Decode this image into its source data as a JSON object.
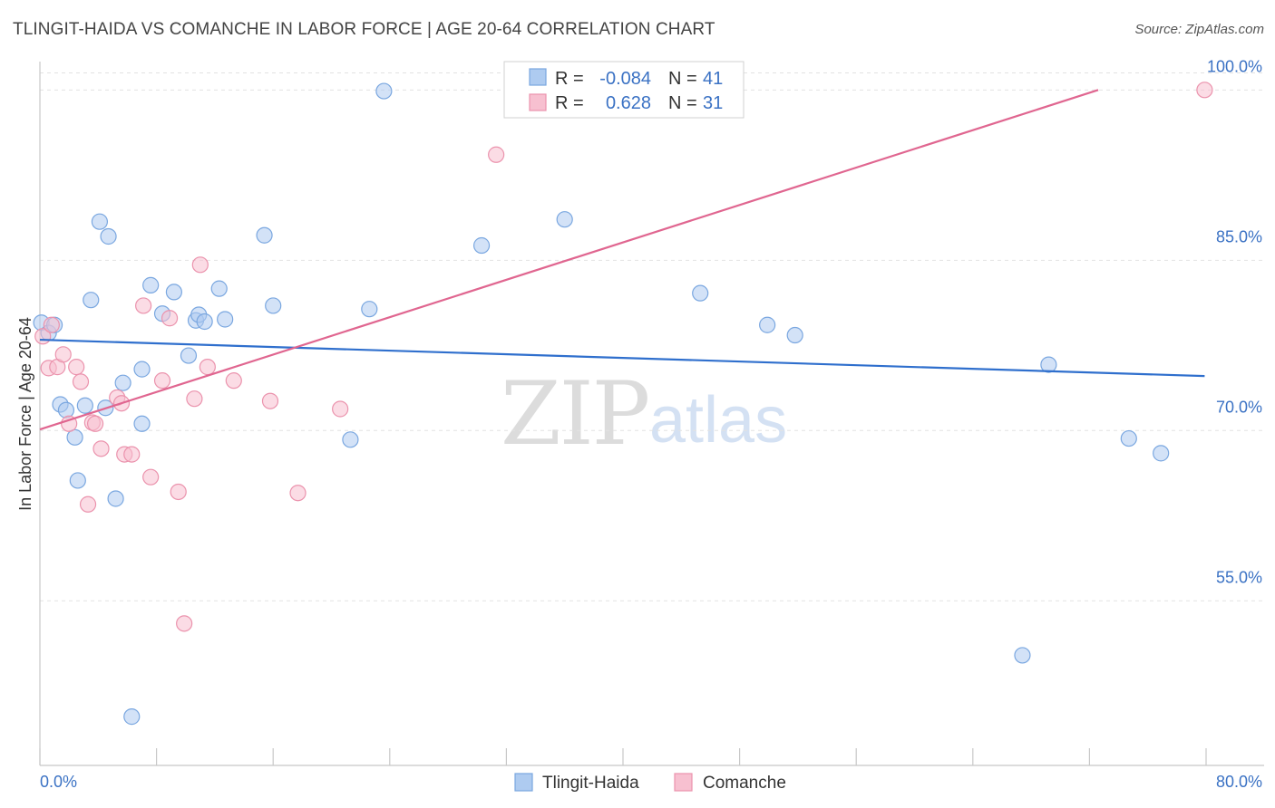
{
  "header": {
    "title": "TLINGIT-HAIDA VS COMANCHE IN LABOR FORCE | AGE 20-64 CORRELATION CHART",
    "source": "Source: ZipAtlas.com"
  },
  "watermark": {
    "zip": "ZIP",
    "atlas": "atlas"
  },
  "legend_box": {
    "rows": [
      {
        "r_label": "R =",
        "r_value": "-0.084",
        "n_label": "N =",
        "n_value": "41",
        "color": "#aecbf0",
        "stroke": "#7aa7e0"
      },
      {
        "r_label": "R =",
        "r_value": "0.628",
        "n_label": "N =",
        "n_value": "31",
        "color": "#f7c0d0",
        "stroke": "#eb93ad"
      }
    ]
  },
  "bottom_legend": [
    {
      "label": "Tlingit-Haida",
      "color": "#aecbf0",
      "stroke": "#7aa7e0"
    },
    {
      "label": "Comanche",
      "color": "#f7c0d0",
      "stroke": "#eb93ad"
    }
  ],
  "chart_data": {
    "type": "scatter",
    "title": "TLINGIT-HAIDA VS COMANCHE IN LABOR FORCE | AGE 20-64 CORRELATION CHART",
    "xlabel": "",
    "ylabel": "In Labor Force | Age 20-64",
    "xlim": [
      0,
      80
    ],
    "ylim": [
      40.5,
      102.5
    ],
    "x_tick_labels": [
      "0.0%",
      "80.0%"
    ],
    "y_ticks": [
      55,
      70,
      85,
      100
    ],
    "y_tick_labels": [
      "55.0%",
      "70.0%",
      "85.0%",
      "100.0%"
    ],
    "grid": true,
    "legend_position": "top-center",
    "series": [
      {
        "name": "Tlingit-Haida",
        "color": "#aecbf0",
        "stroke": "#7aa7e0",
        "line_color": "#2f6fcd",
        "trend": [
          [
            0,
            78.0
          ],
          [
            79.9,
            74.8
          ]
        ],
        "points": [
          [
            0.1,
            79.5
          ],
          [
            0.6,
            78.6
          ],
          [
            1.0,
            79.3
          ],
          [
            1.4,
            72.3
          ],
          [
            1.8,
            71.8
          ],
          [
            2.4,
            69.4
          ],
          [
            2.6,
            65.6
          ],
          [
            3.1,
            72.2
          ],
          [
            3.5,
            81.5
          ],
          [
            4.1,
            88.4
          ],
          [
            4.5,
            72.0
          ],
          [
            4.7,
            87.1
          ],
          [
            5.2,
            64.0
          ],
          [
            5.7,
            74.2
          ],
          [
            6.3,
            44.8
          ],
          [
            7.0,
            75.4
          ],
          [
            7.0,
            70.6
          ],
          [
            7.6,
            82.8
          ],
          [
            8.4,
            80.3
          ],
          [
            9.2,
            82.2
          ],
          [
            10.2,
            76.6
          ],
          [
            10.7,
            79.7
          ],
          [
            10.9,
            80.2
          ],
          [
            11.3,
            79.6
          ],
          [
            12.3,
            82.5
          ],
          [
            12.7,
            79.8
          ],
          [
            15.4,
            87.2
          ],
          [
            16.0,
            81.0
          ],
          [
            21.3,
            69.2
          ],
          [
            22.6,
            80.7
          ],
          [
            23.6,
            99.9
          ],
          [
            30.3,
            86.3
          ],
          [
            36.0,
            88.6
          ],
          [
            36.8,
            99.9
          ],
          [
            45.3,
            82.1
          ],
          [
            49.9,
            79.3
          ],
          [
            51.8,
            78.4
          ],
          [
            67.4,
            50.2
          ],
          [
            69.2,
            75.8
          ],
          [
            74.7,
            69.3
          ],
          [
            76.9,
            68.0
          ]
        ]
      },
      {
        "name": "Comanche",
        "color": "#f7c0d0",
        "stroke": "#eb93ad",
        "line_color": "#e06690",
        "trend": [
          [
            0,
            70.1
          ],
          [
            72.6,
            100.0
          ]
        ],
        "points": [
          [
            0.2,
            78.3
          ],
          [
            0.6,
            75.5
          ],
          [
            0.8,
            79.3
          ],
          [
            1.2,
            75.6
          ],
          [
            1.6,
            76.7
          ],
          [
            2.0,
            70.6
          ],
          [
            2.5,
            75.6
          ],
          [
            2.8,
            74.3
          ],
          [
            3.3,
            63.5
          ],
          [
            3.6,
            70.7
          ],
          [
            3.8,
            70.6
          ],
          [
            4.2,
            68.4
          ],
          [
            5.3,
            72.9
          ],
          [
            5.6,
            72.4
          ],
          [
            5.8,
            67.9
          ],
          [
            6.3,
            67.9
          ],
          [
            7.1,
            81.0
          ],
          [
            7.6,
            65.9
          ],
          [
            8.4,
            74.4
          ],
          [
            8.9,
            79.9
          ],
          [
            9.5,
            64.6
          ],
          [
            9.9,
            53.0
          ],
          [
            10.6,
            72.8
          ],
          [
            11.0,
            84.6
          ],
          [
            11.5,
            75.6
          ],
          [
            13.3,
            74.4
          ],
          [
            15.8,
            72.6
          ],
          [
            17.7,
            64.5
          ],
          [
            20.6,
            71.9
          ],
          [
            31.3,
            94.3
          ],
          [
            79.9,
            100.0
          ]
        ]
      }
    ]
  }
}
